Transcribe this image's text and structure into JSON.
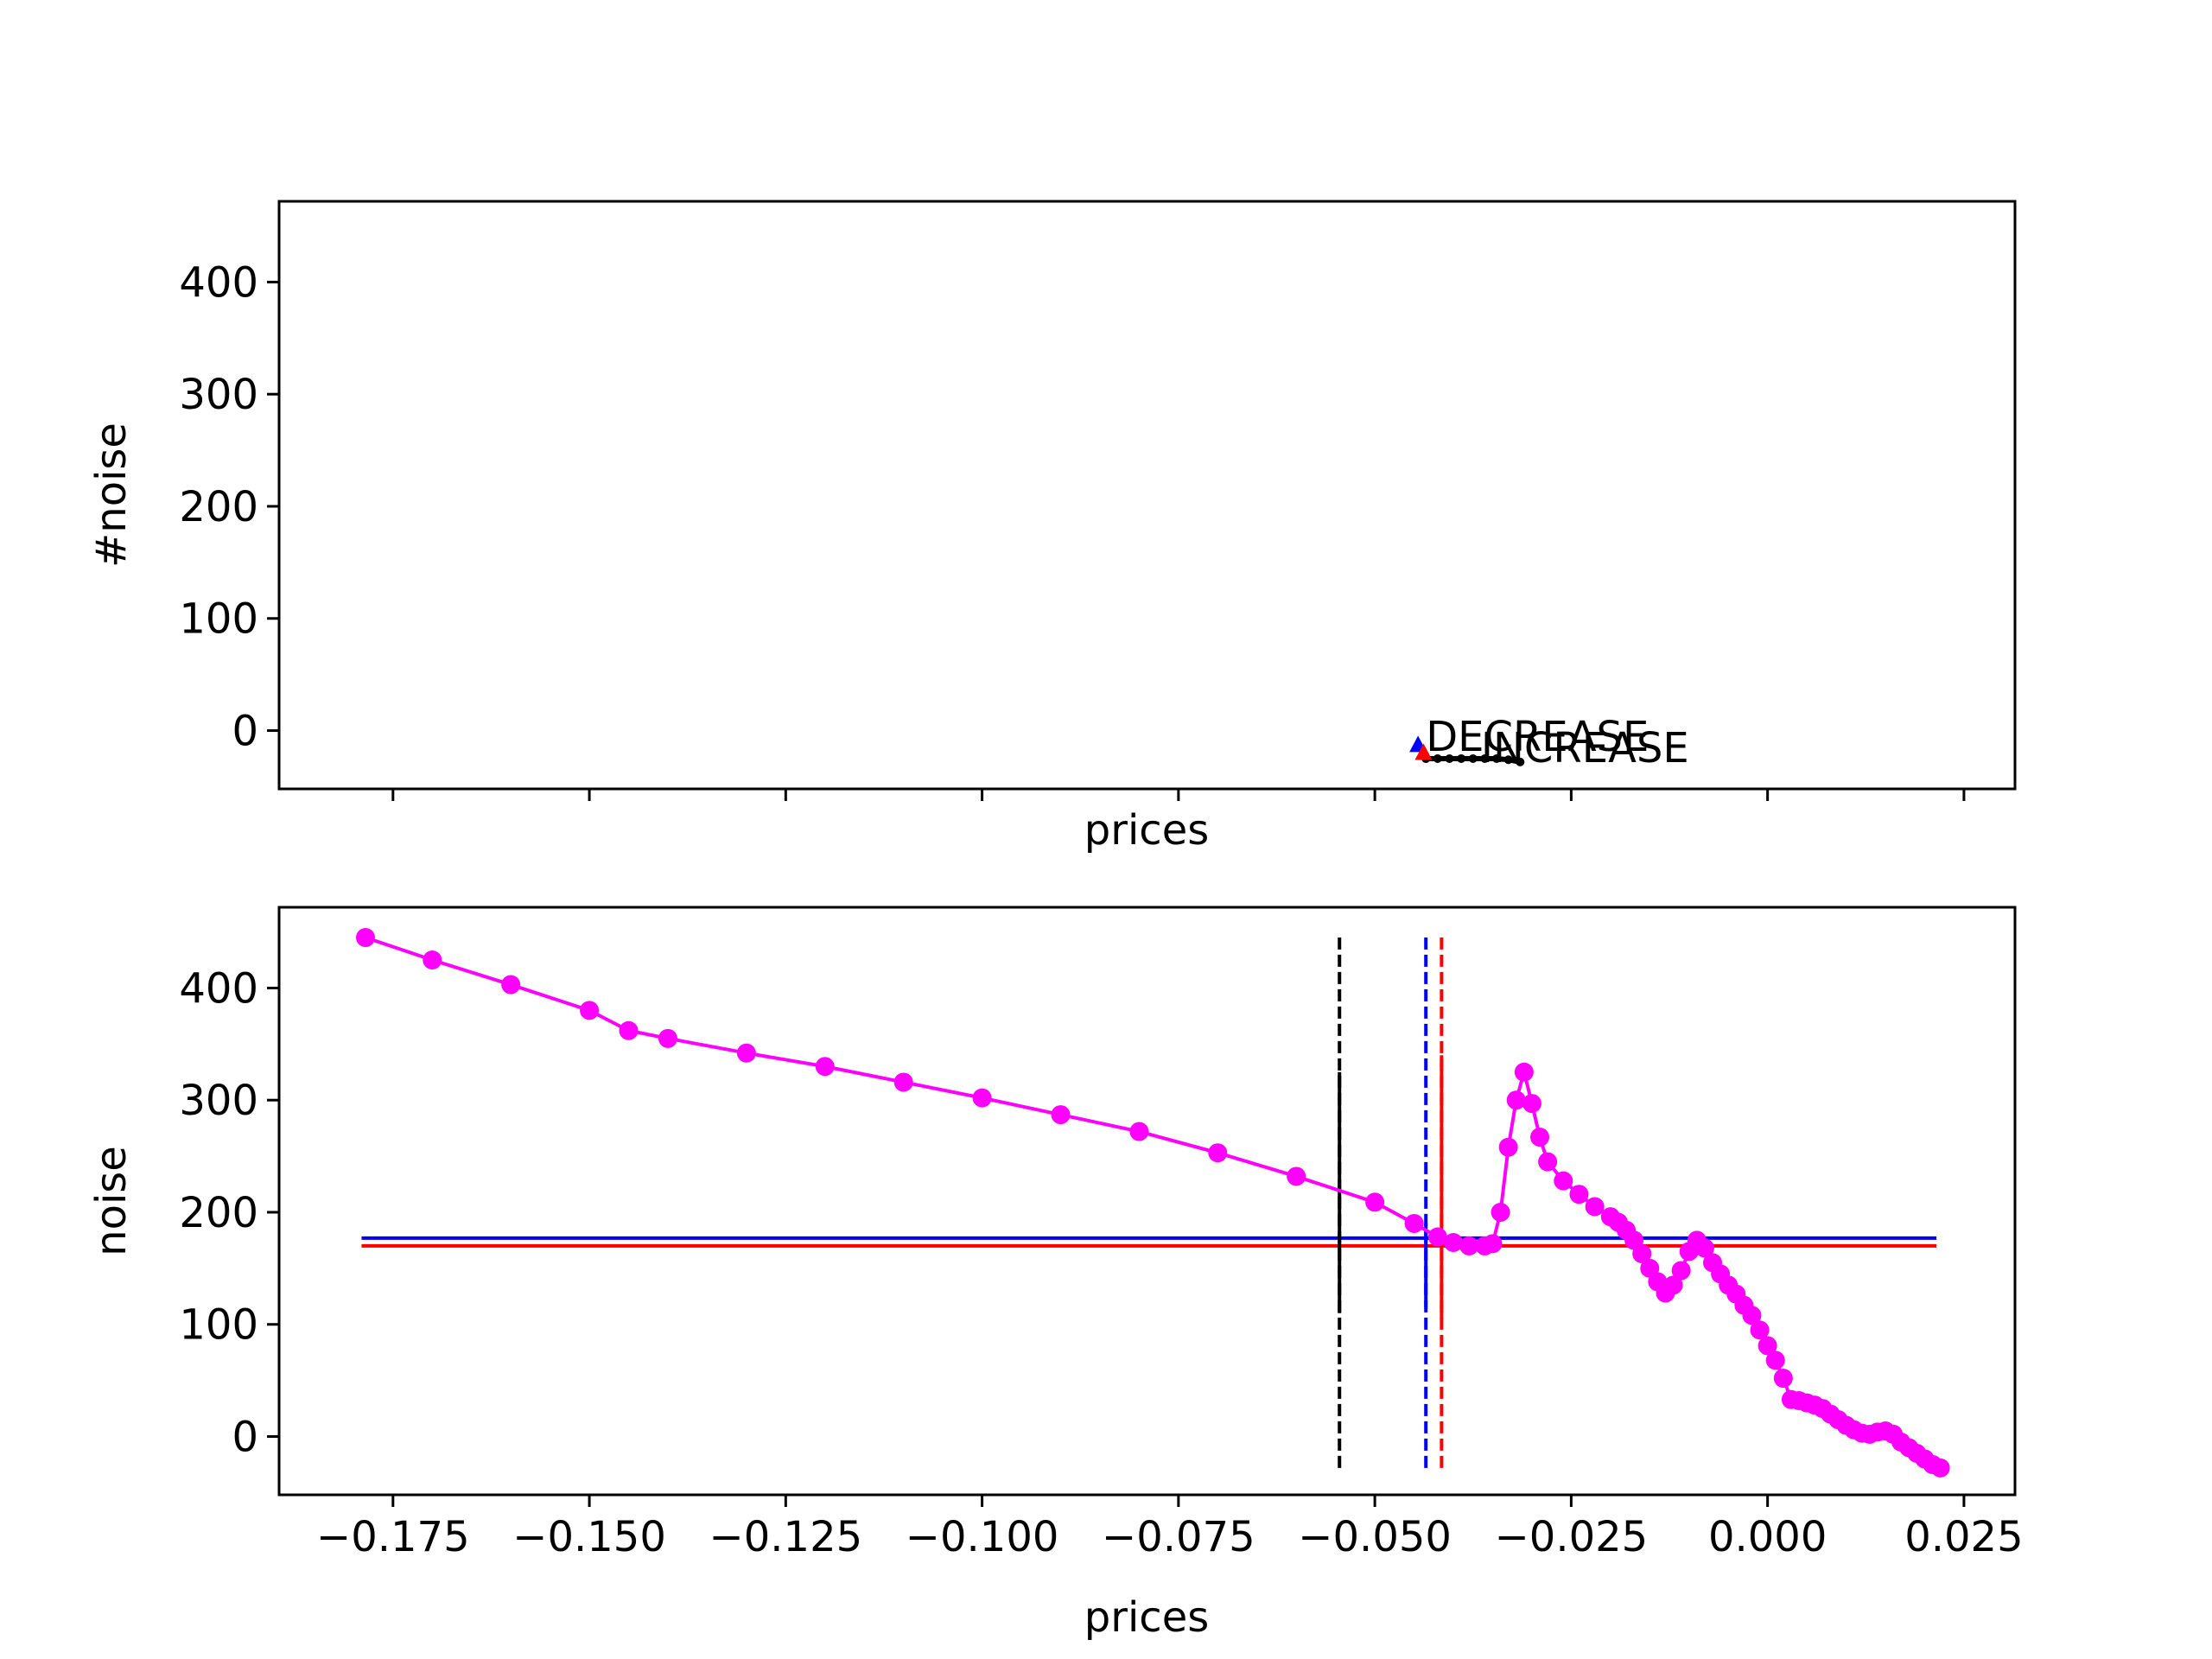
{
  "colors": {
    "series_main": "#ff00ff",
    "blue": "#0000ff",
    "red": "#ff0000",
    "black": "#000000"
  },
  "chart_data": [
    {
      "type": "scatter",
      "xlabel": "prices",
      "ylabel": "#noise",
      "xlim": [
        -0.1895,
        0.0315
      ],
      "ylim": [
        -52,
        472
      ],
      "grid": false,
      "yticks": [
        0,
        100,
        200,
        300,
        400
      ],
      "xticks": [
        -0.175,
        -0.15,
        -0.125,
        -0.1,
        -0.075,
        -0.05,
        -0.025,
        0.0,
        0.025
      ],
      "xtick_labels_visible": false,
      "annotations": [
        {
          "text": "DECREASE",
          "x": -0.0435,
          "y": -18
        },
        {
          "text": "INCREASE",
          "x": -0.0365,
          "y": -28
        }
      ],
      "markers": [
        {
          "shape": "triangle",
          "color": "blue",
          "x": -0.0445,
          "y": -13
        },
        {
          "shape": "triangle",
          "color": "red",
          "x": -0.0438,
          "y": -20
        }
      ],
      "series": [
        {
          "color": "black",
          "x": [
            -0.0435,
            -0.042,
            -0.0405,
            -0.039,
            -0.0375,
            -0.036,
            -0.0345,
            -0.033,
            -0.0315
          ],
          "y": [
            -25,
            -25,
            -25,
            -25,
            -25,
            -25,
            -25,
            -26,
            -28
          ]
        }
      ]
    },
    {
      "type": "line",
      "xlabel": "prices",
      "ylabel": "noise",
      "xlim": [
        -0.1895,
        0.0315
      ],
      "ylim": [
        -52,
        472
      ],
      "grid": false,
      "yticks": [
        0,
        100,
        200,
        300,
        400
      ],
      "xticks": [
        -0.175,
        -0.15,
        -0.125,
        -0.1,
        -0.075,
        -0.05,
        -0.025,
        0.0,
        0.025
      ],
      "xtick_labels": [
        "−0.175",
        "−0.150",
        "−0.125",
        "−0.100",
        "−0.075",
        "−0.050",
        "−0.025",
        "0.000",
        "0.025"
      ],
      "hlines": [
        {
          "y": 177,
          "x_from": -0.179,
          "x_to": 0.0215,
          "color": "blue"
        },
        {
          "y": 170,
          "x_from": -0.179,
          "x_to": 0.0215,
          "color": "red"
        }
      ],
      "vlines": [
        {
          "x": -0.0545,
          "y_from": -28,
          "y_to": 445,
          "color": "black",
          "style": "dashed"
        },
        {
          "x": -0.0545,
          "y_from": 110,
          "y_to": 325,
          "color": "black",
          "style": "solid"
        },
        {
          "x": -0.0435,
          "y_from": -28,
          "y_to": 445,
          "color": "blue",
          "style": "dashed"
        },
        {
          "x": -0.0435,
          "y_from": 115,
          "y_to": 190,
          "color": "blue",
          "style": "solid"
        },
        {
          "x": -0.0415,
          "y_from": -28,
          "y_to": 445,
          "color": "red",
          "style": "dashed"
        },
        {
          "x": -0.0415,
          "y_from": 105,
          "y_to": 340,
          "color": "red",
          "style": "solid"
        }
      ],
      "series": [
        {
          "color": "series_main",
          "x": [
            -0.1785,
            -0.17,
            -0.16,
            -0.15,
            -0.145,
            -0.14,
            -0.13,
            -0.12,
            -0.11,
            -0.1,
            -0.09,
            -0.08,
            -0.07,
            -0.06,
            -0.05,
            -0.045,
            -0.042,
            -0.04,
            -0.038,
            -0.036,
            -0.035,
            -0.034,
            -0.033,
            -0.032,
            -0.031,
            -0.03,
            -0.029,
            -0.028,
            -0.026,
            -0.024,
            -0.022,
            -0.02,
            -0.019,
            -0.018,
            -0.017,
            -0.016,
            -0.015,
            -0.014,
            -0.013,
            -0.012,
            -0.011,
            -0.01,
            -0.009,
            -0.008,
            -0.007,
            -0.006,
            -0.005,
            -0.004,
            -0.003,
            -0.002,
            -0.001,
            0.0,
            0.001,
            0.002,
            0.003,
            0.004,
            0.005,
            0.006,
            0.007,
            0.008,
            0.009,
            0.01,
            0.011,
            0.012,
            0.013,
            0.014,
            0.015,
            0.016,
            0.017,
            0.018,
            0.019,
            0.02,
            0.021,
            0.022
          ],
          "y": [
            445,
            425,
            403,
            380,
            362,
            355,
            342,
            330,
            316,
            302,
            287,
            272,
            253,
            232,
            209,
            190,
            178,
            173,
            170,
            170,
            172,
            200,
            258,
            300,
            325,
            297,
            267,
            245,
            228,
            216,
            205,
            196,
            191,
            184,
            175,
            163,
            150,
            138,
            128,
            135,
            148,
            165,
            175,
            168,
            155,
            145,
            135,
            127,
            117,
            108,
            95,
            81,
            68,
            52,
            33,
            32,
            30,
            28,
            25,
            20,
            15,
            10,
            6,
            3,
            2,
            4,
            5,
            2,
            -5,
            -10,
            -15,
            -20,
            -25,
            -28
          ]
        }
      ]
    }
  ]
}
